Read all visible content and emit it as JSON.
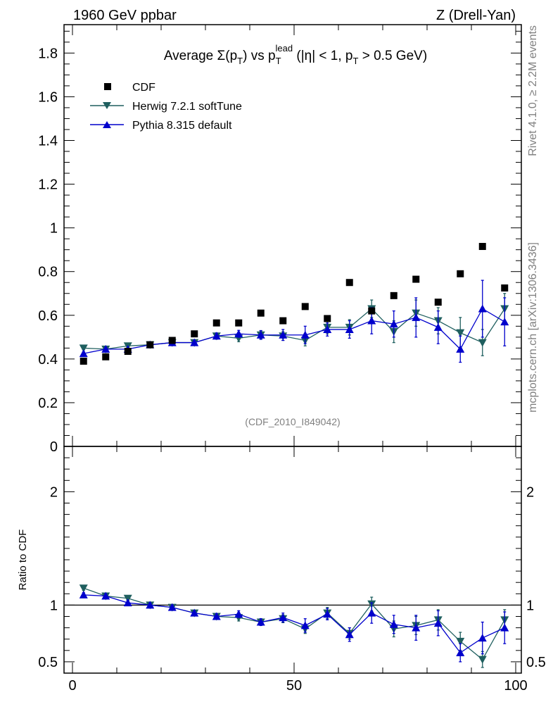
{
  "header": {
    "left": "1960 GeV ppbar",
    "right": "Z (Drell-Yan)"
  },
  "side_labels": {
    "rivet": "Rivet 4.1.0, ≥ 2.2M events",
    "mcplots": "mcplots.cern.ch [arXiv:1306.3436]"
  },
  "watermark": "(CDF_2010_I849042)",
  "title_parts": {
    "prefix": "Average ",
    "sigma": "Σ(p",
    "sub_t": "T",
    "mid": ") vs p",
    "sub_t2": "T",
    "sup_lead": "lead",
    "suffix": " (|η| < 1, p",
    "sub_t3": "T",
    "end": " > 0.5 GeV)"
  },
  "colors": {
    "cdf": "#000000",
    "herwig": "#1f5f5f",
    "pythia": "#0000cc"
  },
  "chart_data": [
    {
      "type": "scatter",
      "panel": "main",
      "xlim": [
        0,
        100
      ],
      "ylim": [
        0,
        1.93
      ],
      "yticks": [
        "0",
        "0.2",
        "0.4",
        "0.6",
        "0.8",
        "1",
        "1.2",
        "1.4",
        "1.6",
        "1.8"
      ],
      "ytick_values": [
        0,
        0.2,
        0.4,
        0.6,
        0.8,
        1.0,
        1.2,
        1.4,
        1.6,
        1.8
      ],
      "legend": [
        "CDF",
        "Herwig 7.2.1 softTune",
        "Pythia 8.315 default"
      ],
      "x": [
        2.5,
        7.5,
        12.5,
        17.5,
        22.5,
        27.5,
        32.5,
        37.5,
        42.5,
        47.5,
        52.5,
        57.5,
        62.5,
        67.5,
        72.5,
        77.5,
        82.5,
        87.5,
        92.5,
        97.5
      ],
      "series": [
        {
          "name": "CDF",
          "values": [
            0.39,
            0.41,
            0.435,
            0.465,
            0.485,
            0.515,
            0.565,
            0.565,
            0.61,
            0.575,
            0.64,
            0.585,
            0.75,
            0.62,
            0.69,
            0.765,
            0.66,
            0.79,
            0.915,
            0.725
          ],
          "errors": [
            0,
            0,
            0,
            0,
            0,
            0,
            0,
            0,
            0,
            0,
            0,
            0,
            0,
            0,
            0,
            0,
            0,
            0,
            0,
            0
          ]
        },
        {
          "name": "Herwig 7.2.1 softTune",
          "values": [
            0.45,
            0.445,
            0.46,
            0.465,
            0.475,
            0.475,
            0.505,
            0.495,
            0.51,
            0.505,
            0.485,
            0.545,
            0.545,
            0.63,
            0.525,
            0.61,
            0.575,
            0.52,
            0.475,
            0.63
          ],
          "errors": [
            0.008,
            0.008,
            0.008,
            0.01,
            0.01,
            0.012,
            0.014,
            0.016,
            0.018,
            0.02,
            0.025,
            0.03,
            0.035,
            0.04,
            0.05,
            0.06,
            0.06,
            0.07,
            0.06,
            0.07
          ]
        },
        {
          "name": "Pythia 8.315 default",
          "values": [
            0.425,
            0.445,
            0.445,
            0.465,
            0.475,
            0.475,
            0.505,
            0.515,
            0.51,
            0.51,
            0.51,
            0.535,
            0.535,
            0.575,
            0.56,
            0.59,
            0.545,
            0.445,
            0.63,
            0.57
          ],
          "errors": [
            0.008,
            0.008,
            0.008,
            0.01,
            0.01,
            0.012,
            0.014,
            0.016,
            0.02,
            0.025,
            0.04,
            0.03,
            0.04,
            0.06,
            0.06,
            0.09,
            0.075,
            0.06,
            0.13,
            0.11
          ]
        }
      ]
    },
    {
      "type": "scatter",
      "panel": "ratio",
      "ylabel": "Ratio to CDF",
      "xlabel": "",
      "xlim": [
        0,
        100
      ],
      "ylim": [
        0.4,
        2.4
      ],
      "xticks": [
        "0",
        "50",
        "100"
      ],
      "xtick_values": [
        0,
        50,
        100
      ],
      "yticks": [
        "0.5",
        "1",
        "2"
      ],
      "ytick_values": [
        0.5,
        1.0,
        2.0
      ],
      "x": [
        2.5,
        7.5,
        12.5,
        17.5,
        22.5,
        27.5,
        32.5,
        37.5,
        42.5,
        47.5,
        52.5,
        57.5,
        62.5,
        67.5,
        72.5,
        77.5,
        82.5,
        87.5,
        92.5,
        97.5
      ],
      "series": [
        {
          "name": "Herwig 7.2.1 softTune",
          "values": [
            1.15,
            1.08,
            1.06,
            1.0,
            0.98,
            0.93,
            0.9,
            0.89,
            0.85,
            0.88,
            0.79,
            0.93,
            0.75,
            1.01,
            0.79,
            0.82,
            0.87,
            0.68,
            0.52,
            0.87
          ],
          "errors": [
            0.02,
            0.02,
            0.02,
            0.02,
            0.02,
            0.02,
            0.025,
            0.03,
            0.03,
            0.035,
            0.04,
            0.05,
            0.05,
            0.06,
            0.07,
            0.08,
            0.09,
            0.08,
            0.07,
            0.09
          ]
        },
        {
          "name": "Pythia 8.315 default",
          "values": [
            1.09,
            1.08,
            1.02,
            1.0,
            0.98,
            0.93,
            0.9,
            0.92,
            0.85,
            0.89,
            0.82,
            0.92,
            0.74,
            0.93,
            0.83,
            0.8,
            0.84,
            0.58,
            0.71,
            0.8
          ],
          "errors": [
            0.02,
            0.02,
            0.02,
            0.02,
            0.02,
            0.02,
            0.025,
            0.03,
            0.03,
            0.04,
            0.06,
            0.05,
            0.06,
            0.09,
            0.08,
            0.11,
            0.11,
            0.08,
            0.14,
            0.14
          ]
        }
      ]
    }
  ]
}
